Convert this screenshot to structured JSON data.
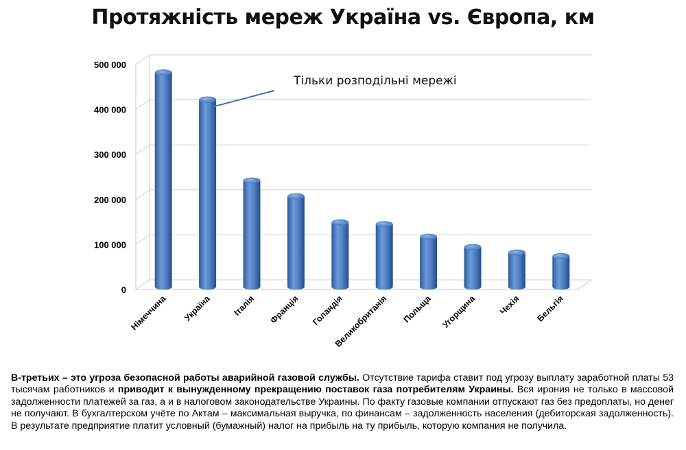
{
  "title": "Протяжність мереж Україна vs. Європа, км",
  "chart_data": {
    "type": "bar",
    "title": "Протяжність мереж Україна vs. Європа, км",
    "categories": [
      "Німеччина",
      "Україна",
      "Італія",
      "Франція",
      "Голандія",
      "Великобританія",
      "Польща",
      "Угорщина",
      "Чехія",
      "Бельгія"
    ],
    "values": [
      470000,
      410000,
      230000,
      195000,
      137000,
      133000,
      105000,
      82000,
      70000,
      62000
    ],
    "ylim": [
      0,
      500000
    ],
    "yticks": [
      0,
      100000,
      200000,
      300000,
      400000,
      500000
    ],
    "ytick_labels": [
      "0",
      "100 000",
      "200 000",
      "300 000",
      "400 000",
      "500 000"
    ],
    "xlabel": "",
    "ylabel": "",
    "grid": true,
    "color": "#4a7ec4",
    "annotation": {
      "text": "Тільки розподільні мережі",
      "target_category": "Україна"
    }
  },
  "body": {
    "lead_bold": "В-третьих – это угроза безопасной работы аварийной газовой службы.",
    "text_1": " Отсутствие тарифа ставит под угрозу выплату заработной платы 53 тысячам работников и ",
    "bold_2": "приводит к вынужденному прекращению поставок газа потребителям Украины.",
    "text_2": " Вся ирония не только в массовой задолженности платежей за газ, а и в налоговом законодательстве Украины. По факту газовые компании отпускают газ без предоплаты, но денег не получают. В бухгалтерском учёте по Актам – максимальная выручка, по финансам – задолженность населения (дебиторская задолженность). В результате предприятие платит условный (бумажный) налог на прибыль на ту прибыль, которую компания не получила."
  }
}
